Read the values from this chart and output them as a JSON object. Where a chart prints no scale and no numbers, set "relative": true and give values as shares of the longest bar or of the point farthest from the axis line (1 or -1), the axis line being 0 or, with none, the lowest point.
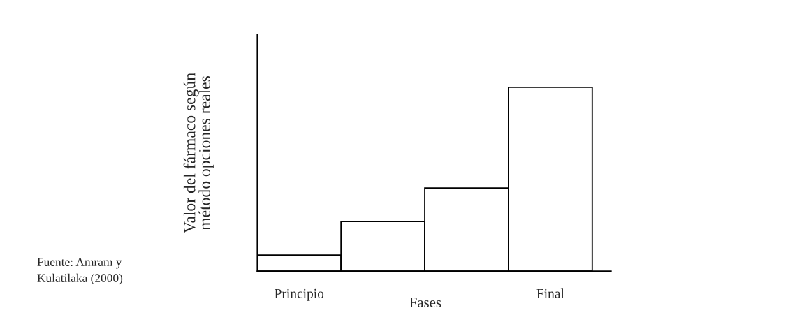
{
  "chart_data": {
    "type": "bar",
    "relative": true,
    "categories": [
      "Principio",
      null,
      null,
      "Final"
    ],
    "values": [
      0.087,
      0.27,
      0.452,
      1
    ],
    "color": "#ffffff",
    "xlabel": "Fases",
    "ylabel": "Valor del fármaco según\nmétodo opciones reales",
    "annotations": [
      "Fuente: Amram y\nKulatilaka (2000)"
    ],
    "tick_labels": "x",
    "grid": false,
    "legend": false
  }
}
